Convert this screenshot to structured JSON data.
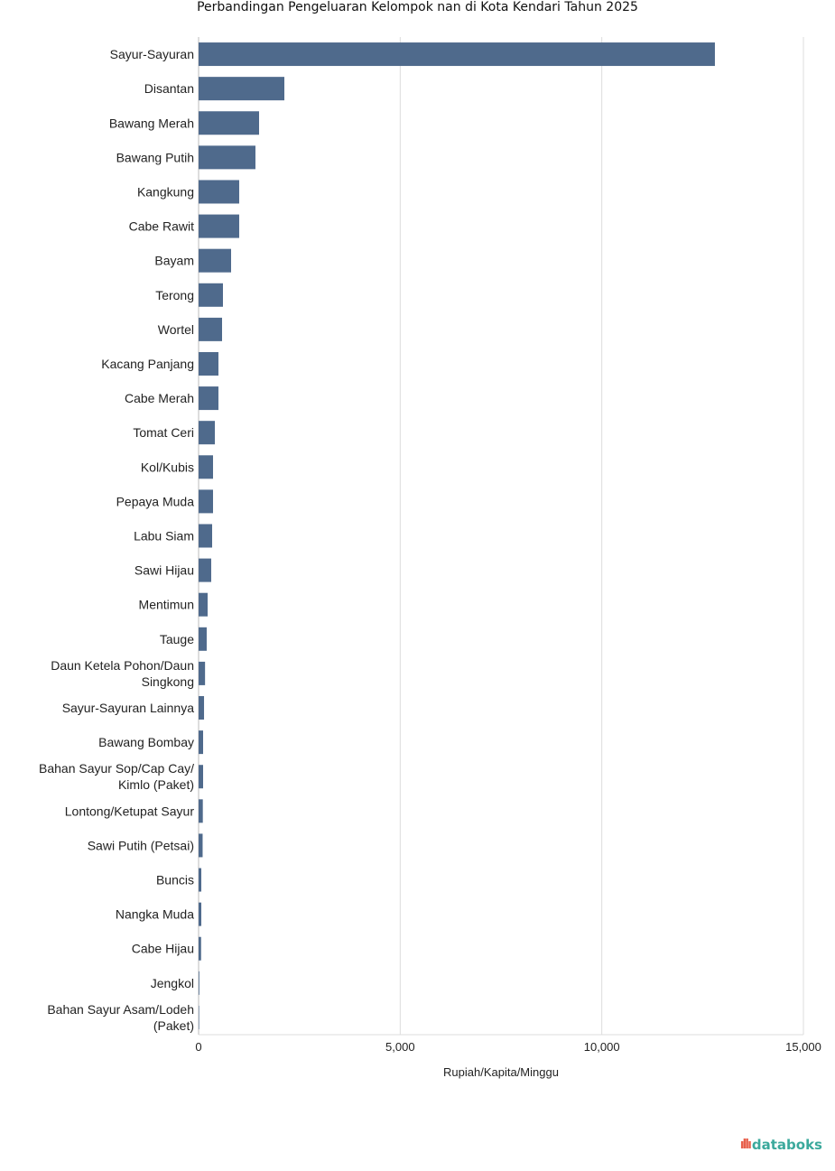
{
  "chart_data": {
    "type": "bar",
    "orientation": "horizontal",
    "title": "Perbandingan Pengeluaran Kelompok nan di Kota Kendari Tahun 2025",
    "xlabel": "Rupiah/Kapita/Minggu",
    "ylabel": "",
    "xlim": [
      0,
      15000
    ],
    "xticks": [
      0,
      5000,
      10000,
      15000
    ],
    "xtick_labels": [
      "0",
      "5,000",
      "10,000",
      "15,000"
    ],
    "grid": true,
    "bar_color": "#4f6a8c",
    "categories": [
      [
        "Sayur-Sayuran"
      ],
      [
        "Disantan"
      ],
      [
        "Bawang Merah"
      ],
      [
        "Bawang Putih"
      ],
      [
        "Kangkung"
      ],
      [
        "Cabe Rawit"
      ],
      [
        "Bayam"
      ],
      [
        "Terong"
      ],
      [
        "Wortel"
      ],
      [
        "Kacang Panjang"
      ],
      [
        "Cabe Merah"
      ],
      [
        "Tomat Ceri"
      ],
      [
        "Kol/Kubis"
      ],
      [
        "Pepaya Muda"
      ],
      [
        "Labu Siam"
      ],
      [
        "Sawi Hijau"
      ],
      [
        "Mentimun"
      ],
      [
        "Tauge"
      ],
      [
        "Daun Ketela Pohon/Daun",
        "Singkong"
      ],
      [
        "Sayur-Sayuran Lainnya"
      ],
      [
        "Bawang Bombay"
      ],
      [
        "Bahan Sayur Sop/Cap Cay/",
        "Kimlo (Paket)"
      ],
      [
        "Lontong/Ketupat Sayur"
      ],
      [
        "Sawi Putih (Petsai)"
      ],
      [
        "Buncis"
      ],
      [
        "Nangka Muda"
      ],
      [
        "Cabe Hijau"
      ],
      [
        "Jengkol"
      ],
      [
        "Bahan Sayur Asam/Lodeh",
        "(Paket)"
      ]
    ],
    "values": [
      12805,
      2127,
      1500,
      1410,
      1007,
      1007,
      806,
      604,
      582,
      492,
      492,
      403,
      358,
      358,
      336,
      313,
      224,
      201,
      160,
      135,
      112,
      112,
      105,
      100,
      67,
      67,
      62,
      18,
      10
    ]
  },
  "branding": {
    "logo_text": "databoks"
  }
}
